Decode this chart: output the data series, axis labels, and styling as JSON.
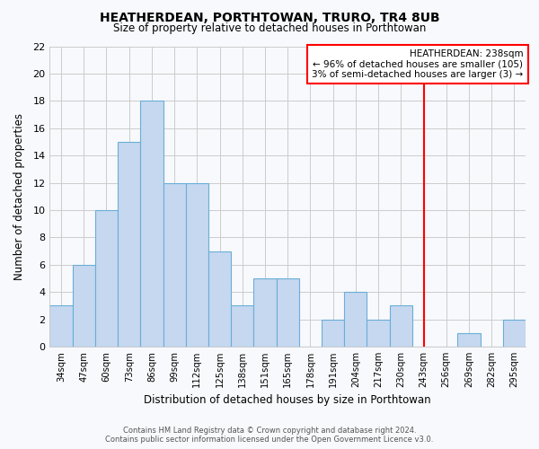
{
  "title": "HEATHERDEAN, PORTHTOWAN, TRURO, TR4 8UB",
  "subtitle": "Size of property relative to detached houses in Porthtowan",
  "xlabel": "Distribution of detached houses by size in Porthtowan",
  "ylabel": "Number of detached properties",
  "bin_labels": [
    "34sqm",
    "47sqm",
    "60sqm",
    "73sqm",
    "86sqm",
    "99sqm",
    "112sqm",
    "125sqm",
    "138sqm",
    "151sqm",
    "165sqm",
    "178sqm",
    "191sqm",
    "204sqm",
    "217sqm",
    "230sqm",
    "243sqm",
    "256sqm",
    "269sqm",
    "282sqm",
    "295sqm"
  ],
  "bar_values": [
    3,
    6,
    10,
    15,
    18,
    12,
    12,
    7,
    3,
    5,
    5,
    0,
    2,
    4,
    2,
    3,
    0,
    0,
    1,
    0,
    2
  ],
  "bar_color": "#c5d8f0",
  "bar_edgecolor": "#6aaed6",
  "vline_color": "red",
  "annotation_line1": "HEATHERDEAN: 238sqm",
  "annotation_line2": "← 96% of detached houses are smaller (105)",
  "annotation_line3": "3% of semi-detached houses are larger (3) →",
  "annotation_box_edgecolor": "red",
  "ylim": [
    0,
    22
  ],
  "yticks": [
    0,
    2,
    4,
    6,
    8,
    10,
    12,
    14,
    16,
    18,
    20,
    22
  ],
  "footer_line1": "Contains HM Land Registry data © Crown copyright and database right 2024.",
  "footer_line2": "Contains public sector information licensed under the Open Government Licence v3.0.",
  "bg_color": "#f7f9fc",
  "grid_color": "#cccccc"
}
